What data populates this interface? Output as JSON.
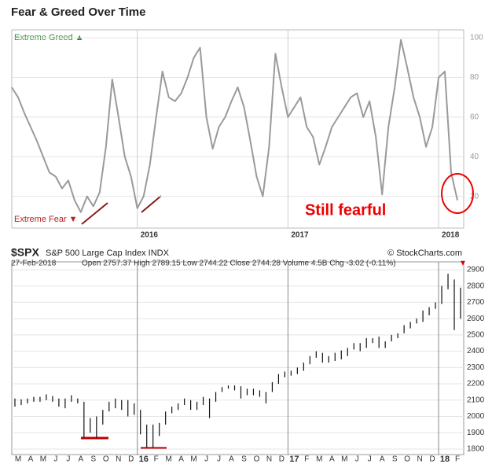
{
  "chart_data": [
    {
      "type": "line",
      "title": "Fear & Greed Over Time",
      "greed_label": "Extreme Greed ▲",
      "fear_label": "Extreme Fear ▼",
      "annotation": "Still fearful",
      "color": "#9a9a9a",
      "x": [
        0,
        0.5,
        1,
        1.5,
        2,
        2.5,
        3,
        3.5,
        4,
        4.5,
        5,
        5.5,
        6,
        6.5,
        7,
        7.5,
        8,
        8.5,
        9,
        9.5,
        10,
        10.5,
        11,
        11.5,
        12,
        12.5,
        13,
        13.5,
        14,
        14.5,
        15,
        15.5,
        16,
        16.5,
        17,
        17.5,
        18,
        18.5,
        19,
        19.5,
        20,
        20.5,
        21,
        21.5,
        22,
        22.5,
        23,
        23.5,
        24,
        24.5,
        25,
        25.5,
        26,
        26.5,
        27,
        27.5,
        28,
        28.5,
        29,
        29.5,
        30,
        30.5,
        31,
        31.5,
        32,
        32.5,
        33,
        33.5,
        34,
        34.5,
        35,
        35.5
      ],
      "values": [
        75,
        70,
        62,
        55,
        48,
        40,
        32,
        30,
        24,
        28,
        18,
        12,
        20,
        15,
        22,
        45,
        79,
        60,
        40,
        30,
        14,
        20,
        36,
        60,
        83,
        70,
        68,
        72,
        80,
        90,
        95,
        60,
        44,
        55,
        60,
        68,
        75,
        65,
        48,
        30,
        20,
        45,
        92,
        75,
        60,
        65,
        70,
        55,
        50,
        36,
        45,
        55,
        60,
        65,
        70,
        72,
        60,
        68,
        50,
        21,
        55,
        75,
        99,
        85,
        70,
        60,
        45,
        55,
        80,
        83,
        32,
        18
      ],
      "xlim": [
        0,
        36
      ],
      "xticks": [
        {
          "value": 10,
          "label": "2016"
        },
        {
          "value": 22,
          "label": "2017"
        },
        {
          "value": 34,
          "label": "2018"
        }
      ],
      "ylim": [
        4,
        104
      ],
      "yticks": [
        20,
        40,
        60,
        80,
        100
      ]
    },
    {
      "type": "ohlc",
      "title": "$SPX",
      "subtitle": "S&P 500 Large Cap Index INDX",
      "credit": "© StockCharts.com",
      "date": "27-Feb-2018",
      "stats": "Open 2757.37 High 2789.15 Low 2744.22 Close 2744.28 Volume 4.5B Chg -3.02 (-0.11%)",
      "down_mark": "▼",
      "color": "#111111",
      "categories": [
        "M",
        "A",
        "M",
        "J",
        "J",
        "A",
        "S",
        "O",
        "N",
        "D",
        "16",
        "F",
        "M",
        "A",
        "M",
        "J",
        "J",
        "A",
        "S",
        "O",
        "N",
        "D",
        "17",
        "F",
        "M",
        "A",
        "M",
        "J",
        "J",
        "A",
        "S",
        "O",
        "N",
        "D",
        "18",
        "F"
      ],
      "highs": [
        2110,
        2105,
        2110,
        2120,
        2120,
        2135,
        2125,
        2110,
        2110,
        2130,
        2110,
        2090,
        1990,
        2000,
        2040,
        2090,
        2110,
        2100,
        2100,
        2080,
        2040,
        1950,
        1950,
        1960,
        2030,
        2060,
        2080,
        2110,
        2100,
        2090,
        2120,
        2110,
        2150,
        2180,
        2190,
        2190,
        2185,
        2170,
        2170,
        2160,
        2150,
        2210,
        2260,
        2275,
        2280,
        2300,
        2330,
        2370,
        2400,
        2390,
        2370,
        2390,
        2405,
        2420,
        2450,
        2450,
        2480,
        2480,
        2490,
        2460,
        2500,
        2510,
        2560,
        2580,
        2600,
        2650,
        2670,
        2700,
        2800,
        2875,
        2840,
        2790
      ],
      "lows": [
        2060,
        2070,
        2080,
        2090,
        2090,
        2100,
        2090,
        2060,
        2050,
        2090,
        2080,
        1870,
        1900,
        1870,
        1950,
        2030,
        2050,
        2040,
        2000,
        2010,
        1890,
        1810,
        1810,
        1880,
        1950,
        2020,
        2040,
        2070,
        2040,
        2040,
        2070,
        1990,
        2090,
        2150,
        2170,
        2160,
        2110,
        2130,
        2130,
        2120,
        2080,
        2150,
        2200,
        2240,
        2250,
        2260,
        2280,
        2320,
        2360,
        2330,
        2330,
        2340,
        2350,
        2370,
        2410,
        2400,
        2420,
        2450,
        2420,
        2420,
        2460,
        2480,
        2510,
        2540,
        2570,
        2580,
        2620,
        2660,
        2690,
        2780,
        2530,
        2600
      ],
      "ylim": [
        1766,
        2948
      ],
      "yticks": [
        1800,
        1900,
        2000,
        2100,
        2200,
        2300,
        2400,
        2500,
        2600,
        2700,
        2800,
        2900
      ]
    }
  ]
}
